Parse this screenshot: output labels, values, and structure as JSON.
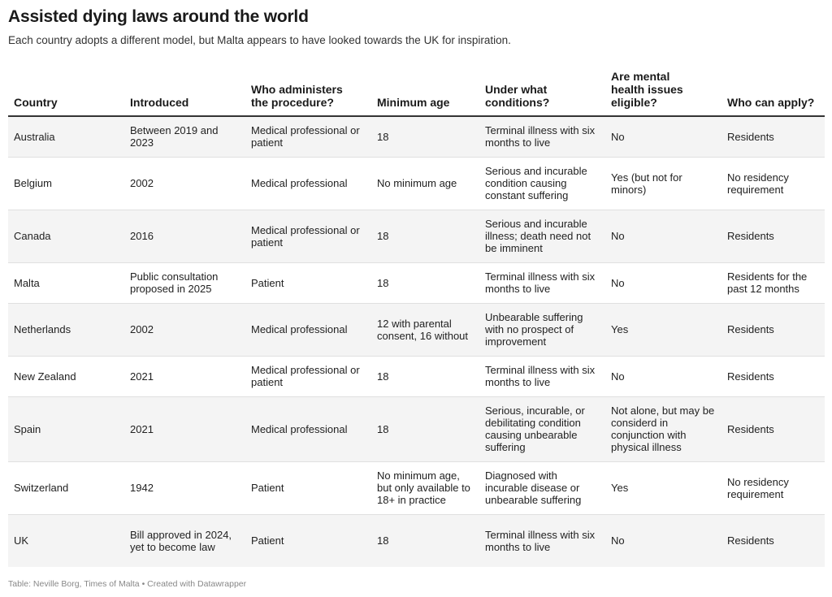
{
  "title": "Assisted dying laws around the world",
  "subtitle": "Each country adopts a different model, but Malta appears to have looked towards the UK for inspiration.",
  "footer": "Table: Neville Borg, Times of Malta • Created with Datawrapper",
  "chart_data": {
    "type": "table",
    "columns": [
      "Country",
      "Introduced",
      "Who administers the procedure?",
      "Minimum age",
      "Under what conditions?",
      "Are mental health issues eligible?",
      "Who can apply?"
    ],
    "rows": [
      [
        "Australia",
        "Between 2019 and 2023",
        "Medical professional or patient",
        "18",
        "Terminal illness with six months to live",
        "No",
        "Residents"
      ],
      [
        "Belgium",
        "2002",
        "Medical professional",
        "No minimum age",
        "Serious and incurable condition causing constant suffering",
        "Yes (but not for minors)",
        "No residency requirement"
      ],
      [
        "Canada",
        "2016",
        "Medical professional or patient",
        "18",
        "Serious and incurable illness; death need not be imminent",
        "No",
        "Residents"
      ],
      [
        "Malta",
        "Public consultation proposed in 2025",
        "Patient",
        "18",
        "Terminal illness with six months to live",
        "No",
        "Residents for the past 12 months"
      ],
      [
        "Netherlands",
        "2002",
        "Medical professional",
        "12 with parental consent, 16 without",
        "Unbearable suffering with no prospect of improvement",
        "Yes",
        "Residents"
      ],
      [
        "New Zealand",
        "2021",
        "Medical professional or patient",
        "18",
        "Terminal illness with six months to live",
        "No",
        "Residents"
      ],
      [
        "Spain",
        "2021",
        "Medical professional",
        "18",
        "Serious, incurable, or debilitating condition causing unbearable suffering",
        "Not alone, but may be considerd in conjunction with physical illness",
        "Residents"
      ],
      [
        "Switzerland",
        "1942",
        "Patient",
        "No minimum age, but only available to 18+ in practice",
        "Diagnosed with incurable disease or unbearable suffering",
        "Yes",
        "No residency requirement"
      ],
      [
        "UK",
        "Bill approved in 2024, yet to become law",
        "Patient",
        "18",
        "Terminal illness with six months to live",
        "No",
        "Residents"
      ]
    ]
  }
}
